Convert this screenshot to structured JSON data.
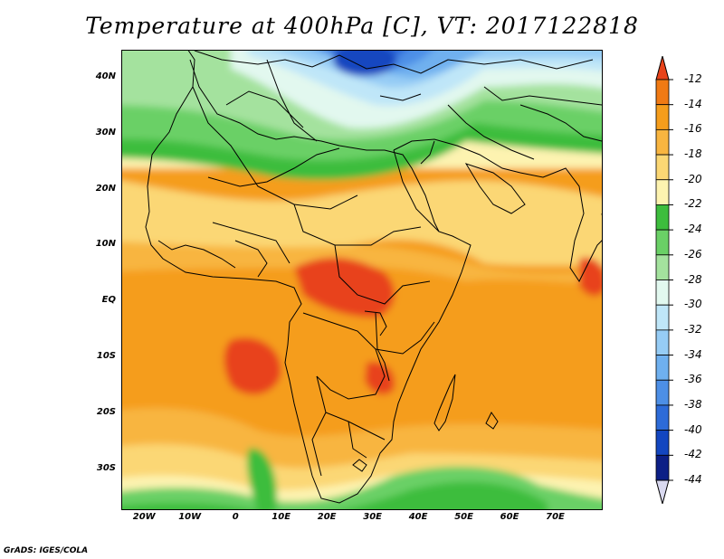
{
  "title": "Temperature at 400hPa [C], VT: 2017122818",
  "credit": "GrADS: IGES/COLA",
  "map": {
    "lon_range": [
      -25,
      80
    ],
    "lat_range": [
      -37,
      45
    ],
    "lat_ticks": [
      {
        "value": 40,
        "label": "40N"
      },
      {
        "value": 30,
        "label": "30N"
      },
      {
        "value": 20,
        "label": "20N"
      },
      {
        "value": 10,
        "label": "10N"
      },
      {
        "value": 0,
        "label": "EQ"
      },
      {
        "value": -10,
        "label": "10S"
      },
      {
        "value": -20,
        "label": "20S"
      },
      {
        "value": -30,
        "label": "30S"
      }
    ],
    "lon_ticks": [
      {
        "value": -20,
        "label": "20W"
      },
      {
        "value": -10,
        "label": "10W"
      },
      {
        "value": 0,
        "label": "0"
      },
      {
        "value": 10,
        "label": "10E"
      },
      {
        "value": 20,
        "label": "20E"
      },
      {
        "value": 30,
        "label": "30E"
      },
      {
        "value": 40,
        "label": "40E"
      },
      {
        "value": 50,
        "label": "50E"
      },
      {
        "value": 60,
        "label": "60E"
      },
      {
        "value": 70,
        "label": "70E"
      }
    ]
  },
  "colorbar": {
    "labels": [
      "-12",
      "-14",
      "-16",
      "-18",
      "-20",
      "-22",
      "-24",
      "-26",
      "-28",
      "-30",
      "-32",
      "-34",
      "-36",
      "-38",
      "-40",
      "-42",
      "-44"
    ],
    "colors": [
      "#e8431a",
      "#f07a14",
      "#f59d1c",
      "#f8b540",
      "#fbd774",
      "#fdf3b0",
      "#3dbd3d",
      "#6ad066",
      "#a4e29e",
      "#e2f8ef",
      "#bfe6f8",
      "#96ccf5",
      "#6fb0ef",
      "#4d8fe6",
      "#2d6bd8",
      "#1346c0",
      "#0c1f86"
    ],
    "top_arrow_color": "#e8431a",
    "bottom_arrow_color": "#d9d9f0"
  }
}
